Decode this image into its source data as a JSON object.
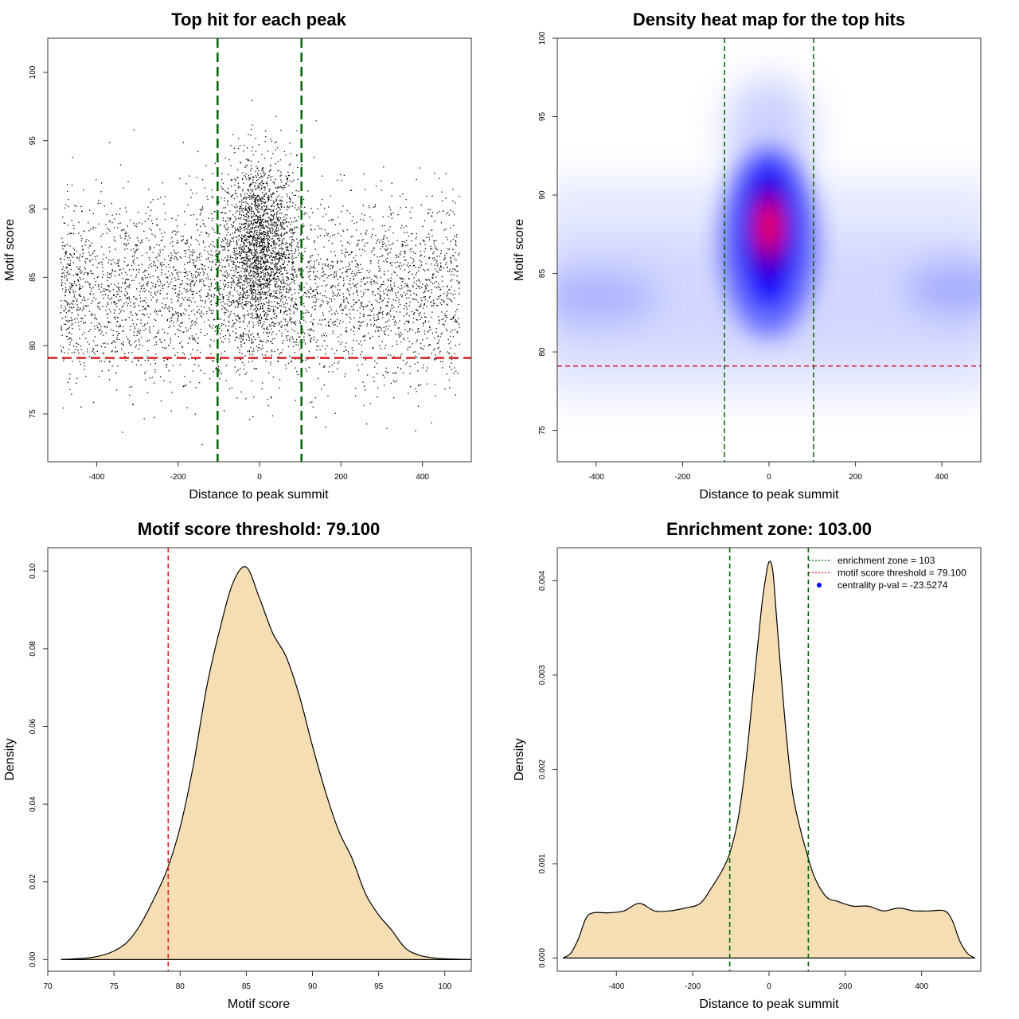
{
  "chart_data": [
    {
      "type": "scatter",
      "title": "Top hit for each peak",
      "xlabel": "Distance to peak summit",
      "ylabel": "Motif score",
      "xlim": [
        -520,
        520
      ],
      "ylim": [
        71.5,
        102.5
      ],
      "xticks": [
        -400,
        -200,
        0,
        200,
        400
      ],
      "yticks": [
        75,
        80,
        85,
        90,
        95,
        100
      ],
      "n_points": 6000,
      "x_range": [
        -490,
        490
      ],
      "central_cluster": {
        "x_mean": 0,
        "x_sd": 45,
        "y_mean": 87.5,
        "y_sd": 3.2,
        "fraction": 0.32
      },
      "background": {
        "y_mean": 84,
        "y_sd": 3.3
      },
      "vlines": [
        -103,
        103
      ],
      "hline": 79.1,
      "vline_color": "#006400",
      "hline_color": "#dd2222",
      "point_color": "#000000"
    },
    {
      "type": "heatmap",
      "title": "Density heat map for the top hits",
      "xlabel": "Distance to peak summit",
      "ylabel": "Motif score",
      "xlim": [
        -490,
        490
      ],
      "ylim": [
        73,
        100
      ],
      "xticks": [
        -400,
        -200,
        0,
        200,
        400
      ],
      "yticks": [
        75,
        80,
        85,
        90,
        95,
        100
      ],
      "peak": {
        "x": 0,
        "y": 88
      },
      "vlines": [
        -103,
        103
      ],
      "hline": 79.1,
      "colors": [
        "#ffffff",
        "#0000ff",
        "#ff0000"
      ]
    },
    {
      "type": "area",
      "title": "Motif score threshold: 79.100",
      "xlabel": "Motif score",
      "ylabel": "Density",
      "xlim": [
        70,
        102
      ],
      "ylim": [
        -0.003,
        0.106
      ],
      "xticks": [
        70,
        75,
        80,
        85,
        90,
        95,
        100
      ],
      "yticks": [
        0.0,
        0.02,
        0.04,
        0.06,
        0.08,
        0.1
      ],
      "ytick_labels": [
        "0.00",
        "0.02",
        "0.04",
        "0.06",
        "0.08",
        "0.10"
      ],
      "fill_color": "#f5deb3",
      "vline": 79.1,
      "vline_color": "#dd2222",
      "x": [
        71,
        73,
        74,
        75,
        76,
        77,
        78,
        79,
        80,
        81,
        82,
        83,
        84,
        85,
        86,
        87,
        88,
        89,
        90,
        91,
        92,
        93,
        94,
        95,
        96,
        97,
        98,
        99,
        100,
        101,
        102
      ],
      "y": [
        0.0,
        0.0004,
        0.001,
        0.0022,
        0.0045,
        0.009,
        0.0155,
        0.023,
        0.034,
        0.05,
        0.07,
        0.085,
        0.097,
        0.101,
        0.093,
        0.084,
        0.078,
        0.068,
        0.055,
        0.043,
        0.033,
        0.026,
        0.017,
        0.0115,
        0.0075,
        0.003,
        0.0012,
        0.0005,
        0.0002,
        0.0001,
        0.0
      ]
    },
    {
      "type": "area",
      "title": "Enrichment zone: 103.00",
      "xlabel": "Distance to peak summit",
      "ylabel": "Density",
      "xlim": [
        -555,
        555
      ],
      "ylim": [
        -0.00014,
        0.00435
      ],
      "xticks": [
        -400,
        -200,
        0,
        200,
        400
      ],
      "yticks": [
        0.0,
        0.001,
        0.002,
        0.003,
        0.004
      ],
      "ytick_labels": [
        "0.000",
        "0.001",
        "0.002",
        "0.003",
        "0.004"
      ],
      "fill_color": "#f5deb3",
      "vlines": [
        -103,
        103
      ],
      "vline_color": "#006400",
      "x": [
        -540,
        -520,
        -500,
        -480,
        -460,
        -420,
        -380,
        -340,
        -300,
        -260,
        -220,
        -180,
        -150,
        -120,
        -100,
        -80,
        -60,
        -40,
        -20,
        -10,
        0,
        10,
        20,
        40,
        60,
        80,
        100,
        120,
        150,
        180,
        220,
        260,
        300,
        340,
        380,
        420,
        460,
        480,
        500,
        520,
        540
      ],
      "y": [
        0.0,
        5e-05,
        0.0002,
        0.00042,
        0.00048,
        0.00048,
        0.0005,
        0.00058,
        0.0005,
        0.0005,
        0.00053,
        0.00058,
        0.00075,
        0.00095,
        0.00115,
        0.0015,
        0.0021,
        0.0029,
        0.0037,
        0.004,
        0.0042,
        0.0041,
        0.0036,
        0.0026,
        0.0018,
        0.0014,
        0.0011,
        0.00085,
        0.00065,
        0.0006,
        0.00055,
        0.00055,
        0.0005,
        0.00053,
        0.0005,
        0.0005,
        0.0005,
        0.0004,
        0.00018,
        5e-05,
        0.0
      ],
      "legend": {
        "position": "top-right",
        "entries": [
          {
            "label": "enrichment zone = 103",
            "color": "#006400",
            "style": "dotted-line"
          },
          {
            "label": "motif score threshold = 79.100",
            "color": "#dd2222",
            "style": "dotted-line"
          },
          {
            "label": "centrality p-val = -23.5274",
            "color": "#0000ff",
            "style": "point"
          }
        ]
      }
    }
  ]
}
